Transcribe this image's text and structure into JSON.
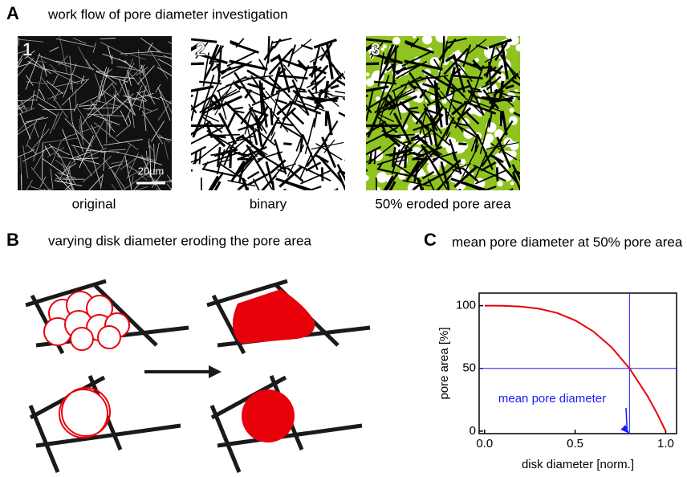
{
  "panel_a": {
    "label": "A",
    "title": "work flow of pore diameter investigation",
    "images": [
      {
        "number": "1",
        "caption": "original",
        "scale_bar": "20µm"
      },
      {
        "number": "2",
        "caption": "binary"
      },
      {
        "number": "3",
        "caption": "50% eroded pore area"
      }
    ]
  },
  "panel_b": {
    "label": "B",
    "title": "varying disk diameter eroding the pore area"
  },
  "panel_c": {
    "label": "C"
  },
  "chart_data": {
    "type": "line",
    "title": "mean pore diameter at 50% pore area",
    "x_label": "disk diameter [norm.]",
    "y_label": "pore area [%]",
    "x": [
      0,
      0.1,
      0.2,
      0.3,
      0.4,
      0.5,
      0.6,
      0.7,
      0.8,
      0.9,
      0.95,
      1.0
    ],
    "series": [
      {
        "color": "#e8000b",
        "values": [
          100,
          99.9,
          99.3,
          97.6,
          94.2,
          88.3,
          79.5,
          67.0,
          50.0,
          27.9,
          14.7,
          0
        ]
      }
    ],
    "xlim": [
      -0.03,
      1.06
    ],
    "ylim": [
      -2,
      110
    ],
    "xticks": [
      {
        "value": 0,
        "label": "0.0"
      },
      0.5,
      {
        "value": 1,
        "label": "1.0"
      }
    ],
    "yticks": [
      0,
      50,
      100
    ],
    "guide_x": 0.8,
    "guide_y": 50,
    "guide_color": "#1a1aff",
    "annotation": "mean pore diameter"
  }
}
